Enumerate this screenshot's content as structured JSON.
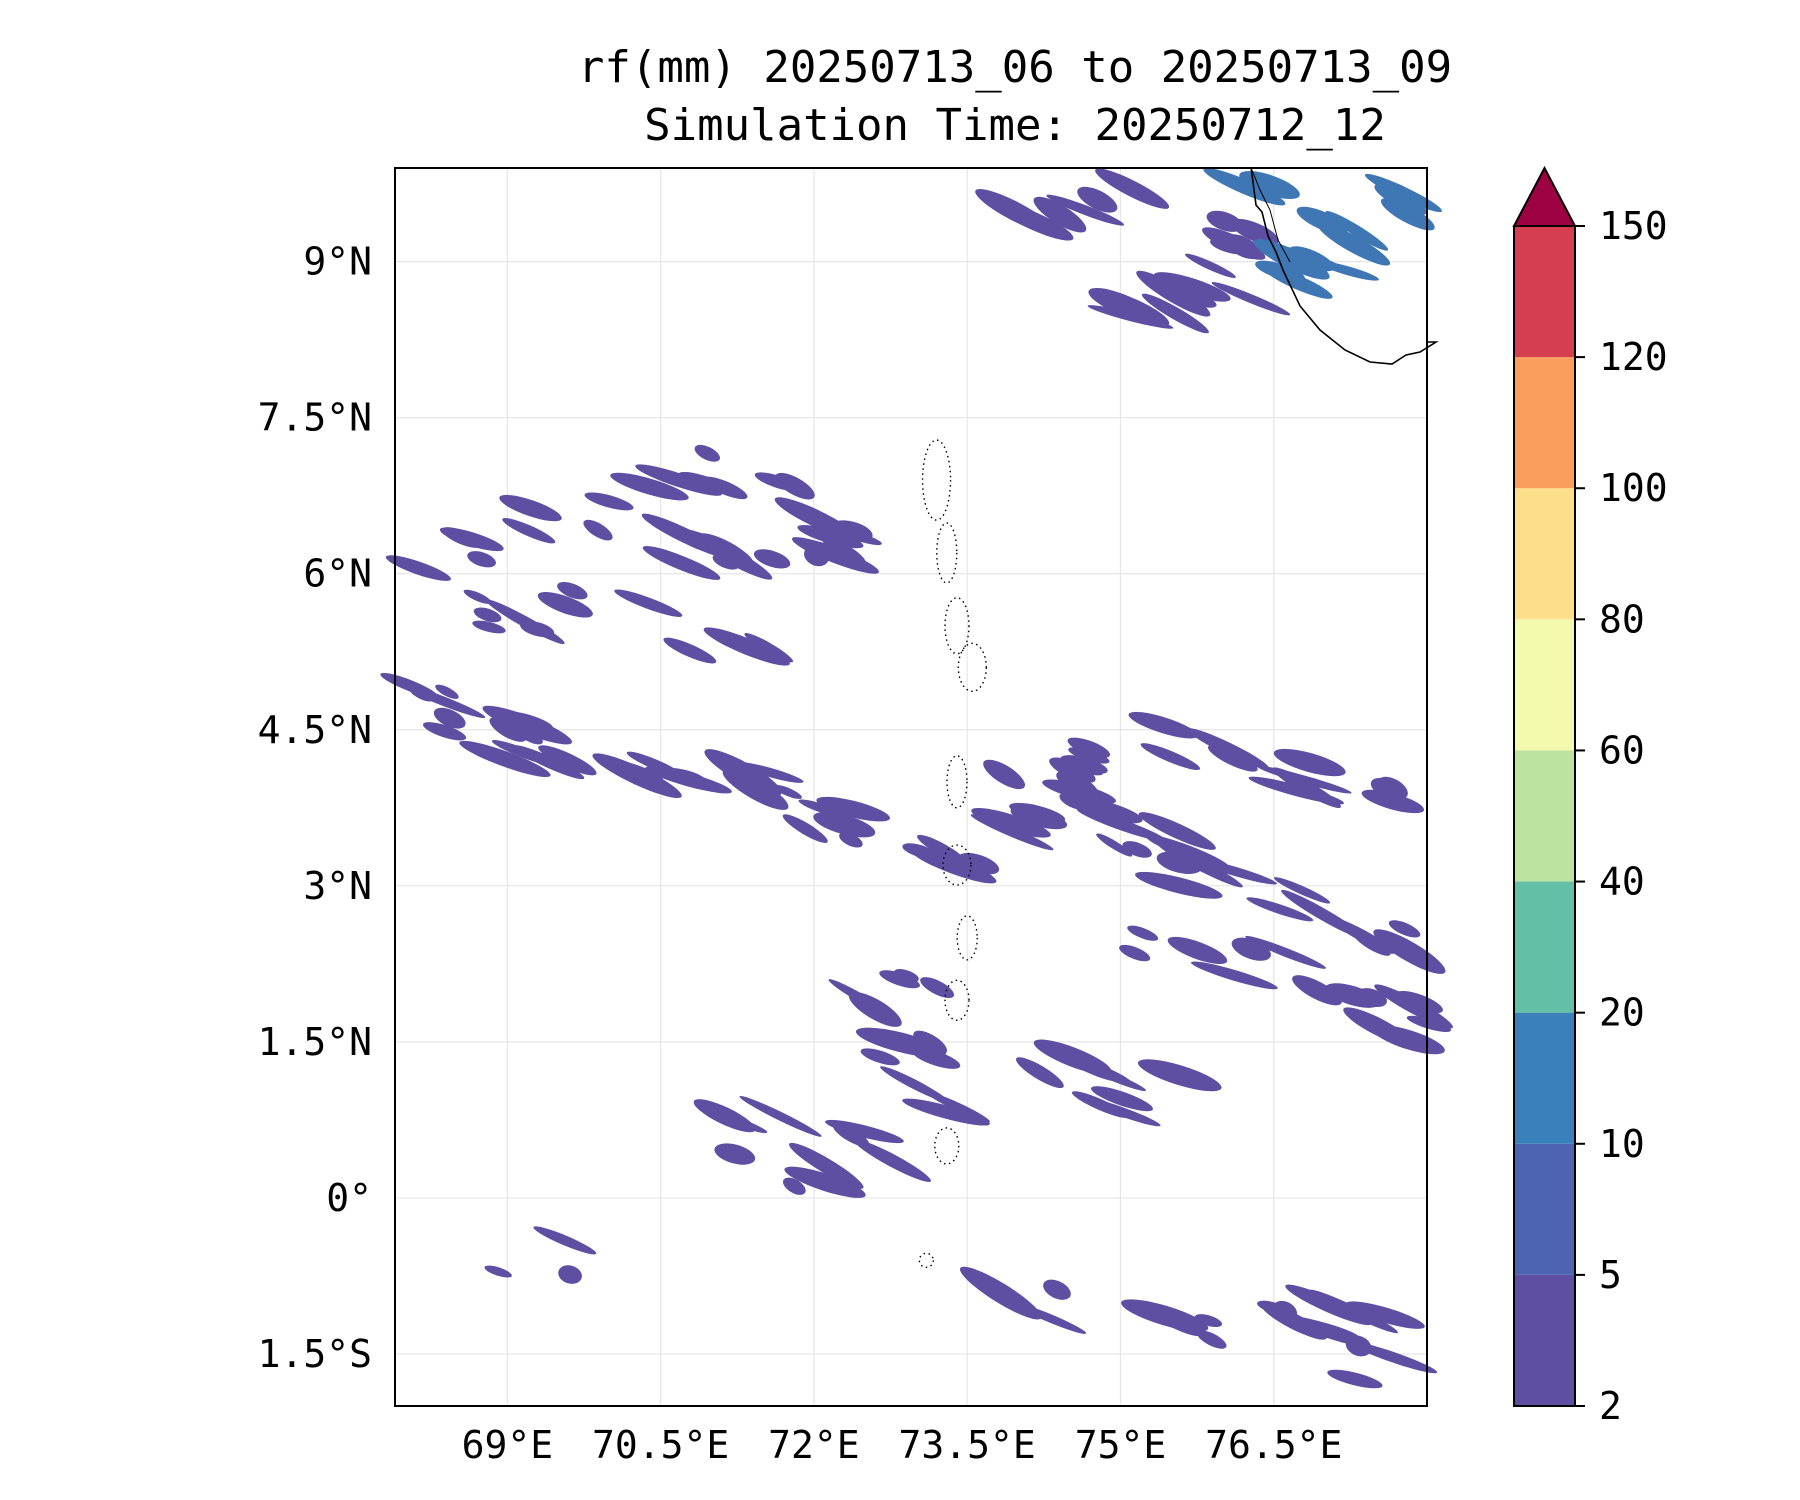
{
  "figure": {
    "title_line1": "rf(mm) 20250713_06 to 20250713_09",
    "title_line2": "Simulation Time: 20250712_12"
  },
  "map": {
    "lon_range": [
      67.9,
      78.0
    ],
    "lat_range": [
      -2.0,
      9.9
    ],
    "lat_ticks": [
      {
        "value": 9,
        "label": "9°N"
      },
      {
        "value": 7.5,
        "label": "7.5°N"
      },
      {
        "value": 6,
        "label": "6°N"
      },
      {
        "value": 4.5,
        "label": "4.5°N"
      },
      {
        "value": 3,
        "label": "3°N"
      },
      {
        "value": 1.5,
        "label": "1.5°N"
      },
      {
        "value": 0,
        "label": "0°"
      },
      {
        "value": -1.5,
        "label": "1.5°S"
      }
    ],
    "lon_ticks": [
      {
        "value": 69,
        "label": "69°E"
      },
      {
        "value": 70.5,
        "label": "70.5°E"
      },
      {
        "value": 72,
        "label": "72°E"
      },
      {
        "value": 73.5,
        "label": "73.5°E"
      },
      {
        "value": 75,
        "label": "75°E"
      },
      {
        "value": 76.5,
        "label": "76.5°E"
      }
    ],
    "gridlines": true,
    "rain_color_main": "#5e4fa2",
    "rain_color_heavy": "#3f76b4",
    "rain_streaks": [
      [
        68.5,
        6.2,
        9
      ],
      [
        69.5,
        6.6,
        9
      ],
      [
        70.3,
        6.8,
        9
      ],
      [
        71.0,
        7.0,
        9
      ],
      [
        71.6,
        6.7,
        9
      ],
      [
        72.2,
        6.5,
        9
      ],
      [
        69.0,
        5.6,
        9
      ],
      [
        70.0,
        5.8,
        9
      ],
      [
        71.2,
        5.3,
        9
      ],
      [
        70.8,
        6.2,
        9
      ],
      [
        72.0,
        6.1,
        9
      ],
      [
        68.4,
        4.8,
        9
      ],
      [
        68.8,
        4.5,
        9
      ],
      [
        69.3,
        4.3,
        9
      ],
      [
        70.4,
        4.0,
        9
      ],
      [
        71.6,
        3.9,
        9
      ],
      [
        72.3,
        3.6,
        9
      ],
      [
        73.4,
        3.2,
        9
      ],
      [
        74.0,
        3.5,
        9
      ],
      [
        74.6,
        3.7,
        9
      ],
      [
        75.3,
        3.4,
        9
      ],
      [
        76.0,
        3.1,
        9
      ],
      [
        76.8,
        2.8,
        9
      ],
      [
        77.6,
        2.4,
        9
      ],
      [
        74.3,
        4.0,
        9
      ],
      [
        75.0,
        4.2,
        9
      ],
      [
        75.8,
        4.4,
        9
      ],
      [
        76.6,
        4.1,
        9
      ],
      [
        77.4,
        3.8,
        9
      ],
      [
        75.4,
        2.4,
        9
      ],
      [
        76.2,
        2.2,
        9
      ],
      [
        77.2,
        2.0,
        9
      ],
      [
        77.7,
        1.7,
        9
      ],
      [
        74.5,
        1.2,
        9
      ],
      [
        75.2,
        1.0,
        9
      ],
      [
        72.8,
        2.0,
        9
      ],
      [
        73.0,
        1.5,
        9
      ],
      [
        73.3,
        1.0,
        9
      ],
      [
        72.4,
        0.5,
        9
      ],
      [
        71.8,
        0.3,
        9
      ],
      [
        71.5,
        0.6,
        9
      ],
      [
        74.7,
        8.5,
        9
      ],
      [
        75.3,
        8.6,
        9
      ],
      [
        76.0,
        8.8,
        9
      ],
      [
        74.0,
        9.3,
        9
      ],
      [
        75.0,
        9.6,
        9
      ],
      [
        76.4,
        9.3,
        9
      ],
      [
        76.6,
        9.6,
        10
      ],
      [
        76.9,
        9.2,
        10
      ],
      [
        77.0,
        8.9,
        10
      ],
      [
        77.4,
        9.5,
        10
      ],
      [
        76.9,
        -1.0,
        9
      ],
      [
        77.3,
        -1.2,
        9
      ],
      [
        77.6,
        -1.6,
        9
      ],
      [
        75.8,
        -1.3,
        9
      ],
      [
        74.1,
        -1.0,
        9
      ],
      [
        69.2,
        -0.6,
        9
      ]
    ]
  },
  "colorbar": {
    "levels": [
      2,
      5,
      10,
      20,
      40,
      60,
      80,
      100,
      120,
      150
    ],
    "level_labels": [
      "2",
      "5",
      "10",
      "20",
      "40",
      "60",
      "80",
      "100",
      "120",
      "150"
    ],
    "colors": [
      "#5e4fa2",
      "#4d65b0",
      "#3a81bc",
      "#64bfa7",
      "#bce4a0",
      "#f4faad",
      "#fddf8b",
      "#f99e5c",
      "#d53e4f"
    ],
    "extend_color": "#9e0142"
  }
}
